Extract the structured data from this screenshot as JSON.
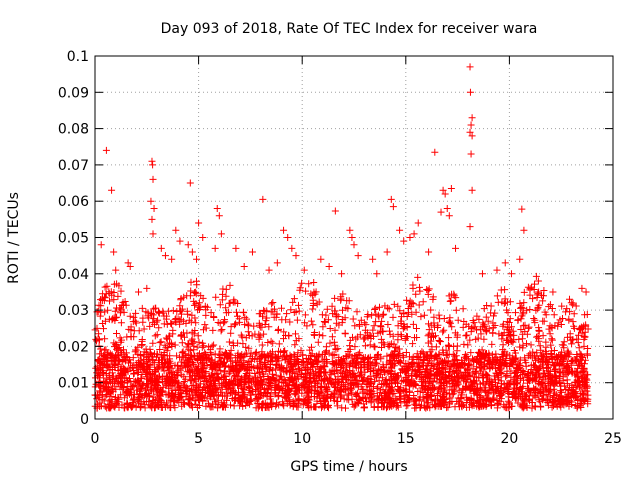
{
  "chart_data": {
    "type": "scatter",
    "title": "Day 093 of 2018, Rate Of TEC Index for receiver wara",
    "xlabel": "GPS time / hours",
    "ylabel": "ROTI / TECUs",
    "xlim": [
      0,
      25
    ],
    "ylim": [
      0,
      0.1
    ],
    "xticks": [
      0,
      5,
      10,
      15,
      20,
      25
    ],
    "xtick_labels": [
      "0",
      "5",
      "10",
      "15",
      "20",
      "25"
    ],
    "yticks": [
      0,
      0.01,
      0.02,
      0.03,
      0.04,
      0.05,
      0.06,
      0.07,
      0.08,
      0.09,
      0.1
    ],
    "ytick_labels": [
      "0",
      "0.01",
      "0.02",
      "0.03",
      "0.04",
      "0.05",
      "0.06",
      "0.07",
      "0.08",
      "0.09",
      "0.1"
    ],
    "grid": true,
    "marker": "+",
    "color": "#ff0000",
    "series": [
      {
        "name": "ROTI",
        "points": [
          [
            0.55,
            0.074
          ],
          [
            0.8,
            0.063
          ],
          [
            0.3,
            0.048
          ],
          [
            0.9,
            0.046
          ],
          [
            1.0,
            0.041
          ],
          [
            1.6,
            0.043
          ],
          [
            1.7,
            0.042
          ],
          [
            2.1,
            0.035
          ],
          [
            2.5,
            0.036
          ],
          [
            2.75,
            0.071
          ],
          [
            2.78,
            0.07
          ],
          [
            2.8,
            0.066
          ],
          [
            2.7,
            0.06
          ],
          [
            2.85,
            0.058
          ],
          [
            2.75,
            0.055
          ],
          [
            2.8,
            0.051
          ],
          [
            3.2,
            0.047
          ],
          [
            3.4,
            0.045
          ],
          [
            3.7,
            0.044
          ],
          [
            3.9,
            0.052
          ],
          [
            4.1,
            0.049
          ],
          [
            4.6,
            0.065
          ],
          [
            4.5,
            0.048
          ],
          [
            4.7,
            0.046
          ],
          [
            4.9,
            0.044
          ],
          [
            5.0,
            0.054
          ],
          [
            5.2,
            0.05
          ],
          [
            5.9,
            0.058
          ],
          [
            6.0,
            0.056
          ],
          [
            6.1,
            0.051
          ],
          [
            5.8,
            0.047
          ],
          [
            6.8,
            0.047
          ],
          [
            7.2,
            0.042
          ],
          [
            7.6,
            0.046
          ],
          [
            8.1,
            0.0605
          ],
          [
            8.4,
            0.041
          ],
          [
            8.8,
            0.043
          ],
          [
            9.1,
            0.052
          ],
          [
            9.3,
            0.05
          ],
          [
            9.5,
            0.047
          ],
          [
            9.7,
            0.045
          ],
          [
            10.1,
            0.041
          ],
          [
            10.9,
            0.044
          ],
          [
            11.3,
            0.042
          ],
          [
            11.6,
            0.0573
          ],
          [
            11.9,
            0.04
          ],
          [
            12.3,
            0.052
          ],
          [
            12.4,
            0.05
          ],
          [
            12.5,
            0.048
          ],
          [
            12.7,
            0.045
          ],
          [
            13.4,
            0.044
          ],
          [
            13.6,
            0.04
          ],
          [
            14.1,
            0.046
          ],
          [
            14.3,
            0.0605
          ],
          [
            14.4,
            0.0585
          ],
          [
            14.7,
            0.052
          ],
          [
            14.9,
            0.049
          ],
          [
            15.2,
            0.05
          ],
          [
            15.4,
            0.051
          ],
          [
            15.6,
            0.054
          ],
          [
            16.1,
            0.046
          ],
          [
            16.4,
            0.0735
          ],
          [
            16.8,
            0.063
          ],
          [
            16.9,
            0.062
          ],
          [
            17.0,
            0.058
          ],
          [
            17.1,
            0.056
          ],
          [
            16.7,
            0.057
          ],
          [
            17.2,
            0.0635
          ],
          [
            17.4,
            0.047
          ],
          [
            18.1,
            0.097
          ],
          [
            18.12,
            0.09
          ],
          [
            18.2,
            0.083
          ],
          [
            18.15,
            0.081
          ],
          [
            18.1,
            0.079
          ],
          [
            18.2,
            0.078
          ],
          [
            18.15,
            0.073
          ],
          [
            18.2,
            0.063
          ],
          [
            18.1,
            0.053
          ],
          [
            18.7,
            0.04
          ],
          [
            19.4,
            0.041
          ],
          [
            19.8,
            0.043
          ],
          [
            20.1,
            0.04
          ],
          [
            20.6,
            0.0578
          ],
          [
            20.7,
            0.052
          ],
          [
            20.5,
            0.044
          ],
          [
            21.0,
            0.036
          ],
          [
            21.4,
            0.038
          ],
          [
            22.1,
            0.035
          ],
          [
            22.9,
            0.033
          ],
          [
            23.5,
            0.036
          ],
          [
            23.7,
            0.035
          ],
          [
            23.6,
            0.02
          ]
        ]
      }
    ],
    "background_band": {
      "x_range": [
        0,
        23.8
      ],
      "y_base": [
        0.003,
        0.018
      ],
      "y_peak": [
        0.018,
        0.04
      ],
      "description": "dense band of measurements"
    }
  }
}
